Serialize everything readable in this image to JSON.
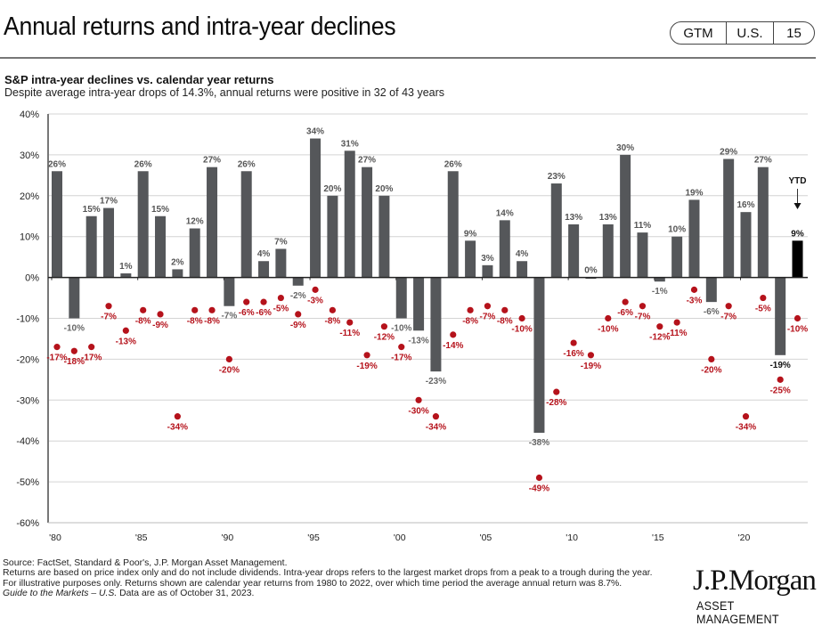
{
  "header": {
    "title": "Annual returns and intra-year declines",
    "badge": [
      "GTM",
      "U.S.",
      "15"
    ]
  },
  "subtitle": "S&P intra-year declines vs. calendar year returns",
  "subsubtitle": "Despite average intra-year drops of 14.3%, annual returns were positive in 32 of 43 years",
  "chart_data": {
    "type": "bar",
    "title": "S&P intra-year declines vs. calendar year returns",
    "xlabel": "",
    "ylabel": "",
    "ylim": [
      -60,
      40
    ],
    "yticks": [
      40,
      30,
      20,
      10,
      0,
      -10,
      -20,
      -30,
      -40,
      -50,
      -60
    ],
    "ytick_labels": [
      "40%",
      "30%",
      "20%",
      "10%",
      "0%",
      "-10%",
      "-20%",
      "-30%",
      "-40%",
      "-50%",
      "-60%"
    ],
    "grid": true,
    "x": [
      1980,
      1981,
      1982,
      1983,
      1984,
      1985,
      1986,
      1987,
      1988,
      1989,
      1990,
      1991,
      1992,
      1993,
      1994,
      1995,
      1996,
      1997,
      1998,
      1999,
      2000,
      2001,
      2002,
      2003,
      2004,
      2005,
      2006,
      2007,
      2008,
      2009,
      2010,
      2011,
      2012,
      2013,
      2014,
      2015,
      2016,
      2017,
      2018,
      2019,
      2020,
      2021,
      2022,
      2023
    ],
    "xtick_years": [
      1980,
      1985,
      1990,
      1995,
      2000,
      2005,
      2010,
      2015,
      2020
    ],
    "xtick_labels": [
      "'80",
      "'85",
      "'90",
      "'95",
      "'00",
      "'05",
      "'10",
      "'15",
      "'20"
    ],
    "series": [
      {
        "name": "Calendar year return",
        "kind": "bar",
        "color": "#55575a",
        "values": [
          26,
          -10,
          15,
          17,
          1,
          26,
          15,
          2,
          12,
          27,
          -7,
          26,
          4,
          7,
          -2,
          34,
          20,
          31,
          27,
          20,
          -10,
          -13,
          -23,
          26,
          9,
          3,
          14,
          4,
          -38,
          23,
          13,
          0,
          13,
          30,
          11,
          -1,
          10,
          19,
          -6,
          29,
          16,
          27,
          -19,
          9
        ]
      },
      {
        "name": "Intra-year decline",
        "kind": "scatter",
        "color": "#b5121b",
        "values": [
          -17,
          -18,
          -17,
          -7,
          -13,
          -8,
          -9,
          -34,
          -8,
          -8,
          -20,
          -6,
          -6,
          -5,
          -9,
          -3,
          -8,
          -11,
          -19,
          -12,
          -17,
          -30,
          -34,
          -14,
          -8,
          -7,
          -8,
          -10,
          -49,
          -28,
          -16,
          -19,
          -10,
          -6,
          -7,
          -12,
          -11,
          -3,
          -20,
          -7,
          -34,
          -5,
          -25,
          -10
        ]
      }
    ],
    "highlight": {
      "year": 2023,
      "label": "YTD",
      "color": "#000000"
    },
    "annotations": [
      "YTD"
    ]
  },
  "footer": {
    "source": "Source: FactSet, Standard & Poor's, J.P. Morgan Asset Management.",
    "note": "Returns are based on price index only and do not include dividends. Intra-year drops refers to the largest market drops from a peak to a trough during the year. For illustrative purposes only. Returns shown are calendar year returns from 1980 to 2022, over which time period the average annual return was 8.7%.",
    "guide_italic": "Guide to the Markets – U.S.",
    "asof": " Data are as of October 31, 2023."
  },
  "logo": {
    "name": "J.P.Morgan",
    "sub": "ASSET MANAGEMENT"
  }
}
